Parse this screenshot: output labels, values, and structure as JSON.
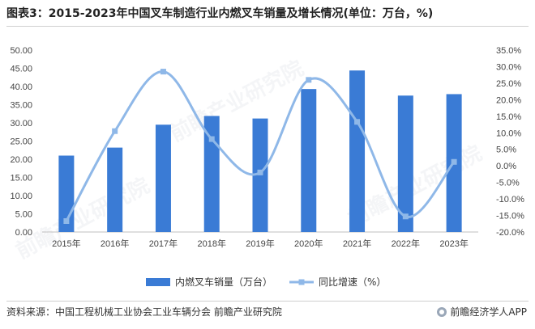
{
  "title": "图表3：2015-2023年中国叉车制造行业内燃叉车销量及增长情况(单位：万台，%)",
  "source": "资料来源：中国工程机械工业协会工业车辆分会 前瞻产业研究院",
  "brand": "前瞻经济学人APP",
  "watermark": "前瞻产业研究院",
  "colors": {
    "bar": "#3a7bd5",
    "line": "#8fb8e8"
  },
  "chart_data": {
    "type": "bar",
    "categories": [
      "2015年",
      "2016年",
      "2017年",
      "2018年",
      "2019年",
      "2020年",
      "2021年",
      "2022年",
      "2023年"
    ],
    "series": [
      {
        "name": "内燃叉车销量（万台）",
        "type": "bar",
        "axis": "left",
        "values": [
          21.0,
          23.2,
          29.5,
          31.9,
          31.2,
          39.3,
          44.4,
          37.5,
          37.9
        ]
      },
      {
        "name": "同比增速（%）",
        "type": "line",
        "axis": "right",
        "values": [
          -16.7,
          10.5,
          28.5,
          8.1,
          -2.0,
          26.0,
          13.3,
          -15.3,
          1.2
        ]
      }
    ],
    "yleft": {
      "min": 0,
      "max": 50,
      "step": 5,
      "ticks": [
        "0.00",
        "5.00",
        "10.00",
        "15.00",
        "20.00",
        "25.00",
        "30.00",
        "35.00",
        "40.00",
        "45.00",
        "50.00"
      ]
    },
    "yright": {
      "min": -20,
      "max": 35,
      "step": 5,
      "ticks": [
        "-20.0%",
        "-15.0%",
        "-10.0%",
        "-5.0%",
        "0.0%",
        "5.0%",
        "10.0%",
        "15.0%",
        "20.0%",
        "25.0%",
        "30.0%",
        "35.0%"
      ]
    },
    "legend_position": "bottom",
    "grid": false
  }
}
